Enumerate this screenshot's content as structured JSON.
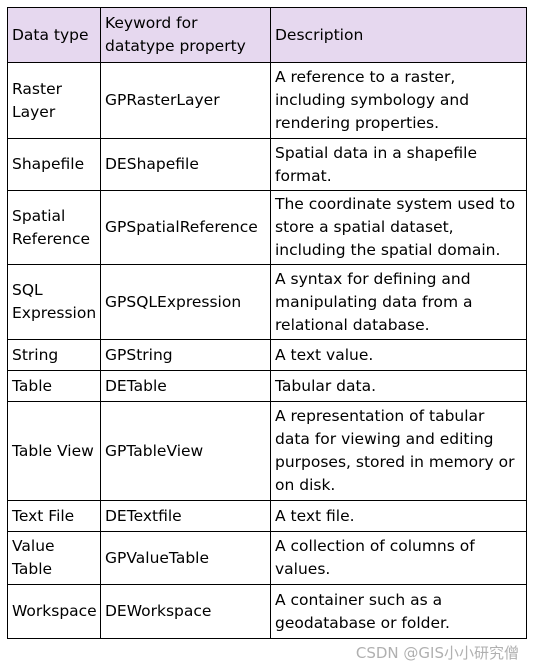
{
  "table": {
    "headers": [
      "Data type",
      "Keyword for datatype property",
      "Description"
    ],
    "rows": [
      {
        "type": "Raster Layer",
        "keyword": "GPRasterLayer",
        "description": "A reference to a raster, including symbology and rendering properties."
      },
      {
        "type": "Shapefile",
        "keyword": "DEShapefile",
        "description": "Spatial data in a shapefile format."
      },
      {
        "type": "Spatial Reference",
        "keyword": "GPSpatialReference",
        "description": "The coordinate system used to store a spatial dataset, including the spatial domain."
      },
      {
        "type": "SQL Expression",
        "keyword": "GPSQLExpression",
        "description": "A syntax for defining and manipulating data from a relational database."
      },
      {
        "type": "String",
        "keyword": "GPString",
        "description": "A text value."
      },
      {
        "type": "Table",
        "keyword": "DETable",
        "description": "Tabular data."
      },
      {
        "type": "Table View",
        "keyword": "GPTableView",
        "description": "A representation of tabular data for viewing and editing purposes, stored in memory or on disk."
      },
      {
        "type": "Text File",
        "keyword": "DETextfile",
        "description": "A text file."
      },
      {
        "type": "Value Table",
        "keyword": "GPValueTable",
        "description": "A collection of columns of values."
      },
      {
        "type": "Workspace",
        "keyword": "DEWorkspace",
        "description": "A container such as a geodatabase or folder."
      }
    ],
    "header_background": "#e6d8ef"
  },
  "watermark": {
    "text": "CSDN @GIS小小研究僧"
  }
}
